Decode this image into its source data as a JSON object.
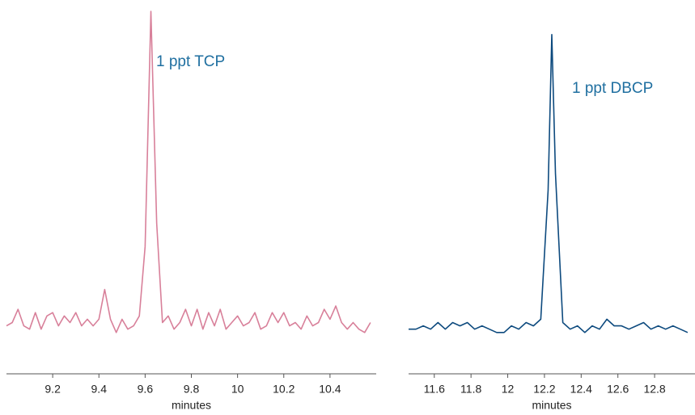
{
  "chart_data": [
    {
      "type": "line",
      "xlabel": "minutes",
      "annotation": "1 ppt TCP",
      "color": "#d8809a",
      "xlim": [
        9.0,
        10.6
      ],
      "xticks": [
        9.2,
        9.4,
        9.6,
        9.8,
        10,
        10.2,
        10.4
      ],
      "ylim": [
        0,
        100
      ],
      "x": [
        9.0,
        9.025,
        9.05,
        9.075,
        9.1,
        9.125,
        9.15,
        9.175,
        9.2,
        9.225,
        9.25,
        9.275,
        9.3,
        9.325,
        9.35,
        9.375,
        9.4,
        9.425,
        9.45,
        9.475,
        9.5,
        9.525,
        9.55,
        9.575,
        9.6,
        9.625,
        9.65,
        9.675,
        9.7,
        9.725,
        9.75,
        9.775,
        9.8,
        9.825,
        9.85,
        9.875,
        9.9,
        9.925,
        9.95,
        9.975,
        10.0,
        10.025,
        10.05,
        10.075,
        10.1,
        10.125,
        10.15,
        10.175,
        10.2,
        10.225,
        10.25,
        10.275,
        10.3,
        10.325,
        10.35,
        10.375,
        10.4,
        10.425,
        10.45,
        10.475,
        10.5,
        10.525,
        10.55,
        10.575
      ],
      "values": [
        4,
        5,
        9,
        4,
        3,
        8,
        3,
        7,
        8,
        4,
        7,
        5,
        8,
        4,
        6,
        4,
        6,
        15,
        6,
        2,
        6,
        3,
        4,
        7,
        28,
        99,
        35,
        5,
        7,
        3,
        5,
        9,
        4,
        9,
        3,
        8,
        4,
        9,
        3,
        5,
        7,
        4,
        5,
        8,
        3,
        4,
        8,
        5,
        8,
        4,
        5,
        3,
        7,
        4,
        5,
        9,
        6,
        10,
        5,
        3,
        5,
        3,
        2,
        5
      ]
    },
    {
      "type": "line",
      "xlabel": "minutes",
      "annotation": "1 ppt DBCP",
      "color": "#0d4a7e",
      "xlim": [
        11.46,
        13.02
      ],
      "xticks": [
        11.6,
        11.8,
        12,
        12.2,
        12.4,
        12.6,
        12.8
      ],
      "ylim": [
        0,
        100
      ],
      "x": [
        11.46,
        11.5,
        11.54,
        11.58,
        11.62,
        11.66,
        11.7,
        11.74,
        11.78,
        11.82,
        11.86,
        11.9,
        11.94,
        11.98,
        12.02,
        12.06,
        12.1,
        12.14,
        12.18,
        12.22,
        12.24,
        12.26,
        12.3,
        12.34,
        12.38,
        12.42,
        12.46,
        12.5,
        12.54,
        12.58,
        12.62,
        12.66,
        12.7,
        12.74,
        12.78,
        12.82,
        12.86,
        12.9,
        12.94,
        12.98
      ],
      "values": [
        3,
        3,
        4,
        3,
        5,
        3,
        5,
        4,
        5,
        3,
        4,
        3,
        2,
        2,
        4,
        3,
        5,
        4,
        6,
        45,
        92,
        50,
        5,
        3,
        4,
        2,
        4,
        3,
        6,
        4,
        4,
        3,
        4,
        5,
        3,
        4,
        3,
        4,
        3,
        2
      ]
    }
  ]
}
